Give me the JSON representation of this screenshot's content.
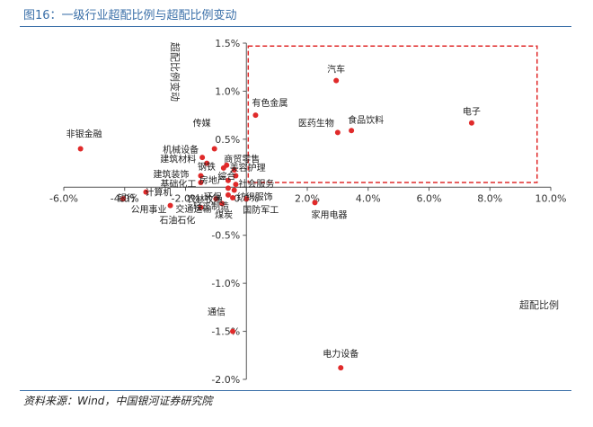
{
  "figure": {
    "title": "图16：一级行业超配比例与超配比例变动",
    "source": "资料来源：Wind，中国银河证券研究院"
  },
  "chart_data": {
    "type": "scatter",
    "xlabel": "超配比例",
    "ylabel": "超配比例变动",
    "xlim": [
      -0.06,
      0.1
    ],
    "ylim": [
      -0.02,
      0.015
    ],
    "x_ticks": [
      -0.06,
      -0.04,
      -0.02,
      0.0,
      0.02,
      0.04,
      0.06,
      0.08,
      0.1
    ],
    "x_tick_labels": [
      "-6.0%",
      "-4.0%",
      "-2.0%",
      "0.0%",
      "2.0%",
      "4.0%",
      "6.0%",
      "8.0%",
      "10.0%"
    ],
    "y_ticks": [
      0.015,
      0.01,
      0.005,
      -0.005,
      -0.01,
      -0.015,
      -0.02
    ],
    "y_tick_labels": [
      "1.5%",
      "1.0%",
      "0.5%",
      "-0.5%",
      "-1.0%",
      "-1.5%",
      "-2.0%"
    ],
    "grid": false,
    "marker_color": "#e02a2a",
    "highlight_box": {
      "x": [
        0.0006,
        0.0955
      ],
      "y": [
        0.0005,
        0.0147
      ],
      "style": "dashed",
      "color": "#e02a2a"
    },
    "points": [
      {
        "label": "汽车",
        "x": 0.0295,
        "y": 0.0111
      },
      {
        "label": "电子",
        "x": 0.074,
        "y": 0.0067
      },
      {
        "label": "有色金属",
        "x": 0.003,
        "y": 0.0075
      },
      {
        "label": "医药生物",
        "x": 0.03,
        "y": 0.0057
      },
      {
        "label": "食品饮料",
        "x": 0.0345,
        "y": 0.0059
      },
      {
        "label": "非银金融",
        "x": -0.0545,
        "y": 0.004
      },
      {
        "label": "传媒",
        "x": -0.0105,
        "y": 0.004
      },
      {
        "label": "机械设备",
        "x": -0.0145,
        "y": 0.0031
      },
      {
        "label": "建筑材料",
        "x": -0.013,
        "y": 0.0025
      },
      {
        "label": "商贸零售",
        "x": -0.0065,
        "y": 0.0023
      },
      {
        "label": "钢铁",
        "x": -0.0075,
        "y": 0.002
      },
      {
        "label": "美容护理",
        "x": -0.004,
        "y": 0.0018
      },
      {
        "label": "建筑装饰",
        "x": -0.015,
        "y": 0.0012
      },
      {
        "label": "综合",
        "x": -0.0035,
        "y": 0.0012
      },
      {
        "label": "房地产",
        "x": -0.006,
        "y": 0.0007
      },
      {
        "label": "基础化工",
        "x": -0.015,
        "y": 0.0005
      },
      {
        "label": "社会服务",
        "x": -0.0035,
        "y": 0.0003
      },
      {
        "label": "环保",
        "x": -0.006,
        "y": -0.0001
      },
      {
        "label": "纺织服饰",
        "x": -0.004,
        "y": -0.0003
      },
      {
        "label": "计算机",
        "x": -0.033,
        "y": -0.0005
      },
      {
        "label": "农林牧渔",
        "x": -0.006,
        "y": -0.0008
      },
      {
        "label": "轻工制造",
        "x": -0.0045,
        "y": -0.0011
      },
      {
        "label": "国防军工",
        "x": 0.0,
        "y": -0.0012
      },
      {
        "label": "银行",
        "x": -0.0405,
        "y": -0.0012
      },
      {
        "label": "公用事业",
        "x": -0.025,
        "y": -0.0019
      },
      {
        "label": "交通运输",
        "x": -0.01,
        "y": -0.0012
      },
      {
        "label": "石油石化",
        "x": -0.015,
        "y": -0.0021
      },
      {
        "label": "煤炭",
        "x": -0.008,
        "y": -0.0017
      },
      {
        "label": "家用电器",
        "x": 0.0225,
        "y": -0.0016
      },
      {
        "label": "通信",
        "x": -0.0045,
        "y": -0.015
      },
      {
        "label": "电力设备",
        "x": 0.031,
        "y": -0.0188
      }
    ]
  }
}
